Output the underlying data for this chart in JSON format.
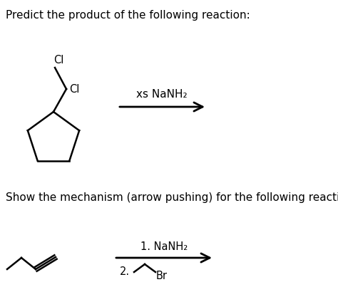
{
  "bg_color": "#ffffff",
  "title1": "Predict the product of the following reaction:",
  "title2": "Show the mechanism (arrow pushing) for the following reaction:",
  "reagent1": "xs NaNH₂",
  "reagent2_1": "1. NaNH₂",
  "reagent2_2": "2.",
  "reagent2_3": "Br",
  "label_Cl1": "Cl",
  "label_Cl2": "Cl",
  "figsize": [
    4.74,
    4.03
  ],
  "dpi": 100
}
